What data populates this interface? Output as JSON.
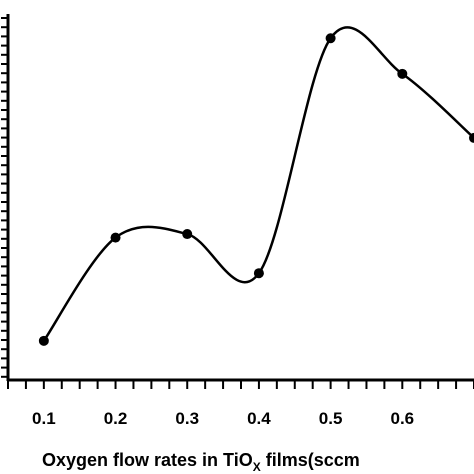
{
  "chart_data": {
    "type": "line",
    "title": "",
    "xlabel_parts": {
      "before": "Oxygen flow rates in TiO",
      "subscript": "X",
      "after": " films(sccm"
    },
    "ylabel": "",
    "x_ticks": [
      "0.1",
      "0.2",
      "0.3",
      "0.4",
      "0.5",
      "0.6"
    ],
    "xlim": [
      0.05,
      0.7
    ],
    "ylim": [
      0,
      1
    ],
    "series": [
      {
        "x": [
          0.1,
          0.2,
          0.3,
          0.4,
          0.5,
          0.6,
          0.7
        ],
        "y": [
          0.11,
          0.4,
          0.41,
          0.3,
          0.96,
          0.86,
          0.68
        ]
      }
    ],
    "grid": false,
    "legend": "none"
  }
}
